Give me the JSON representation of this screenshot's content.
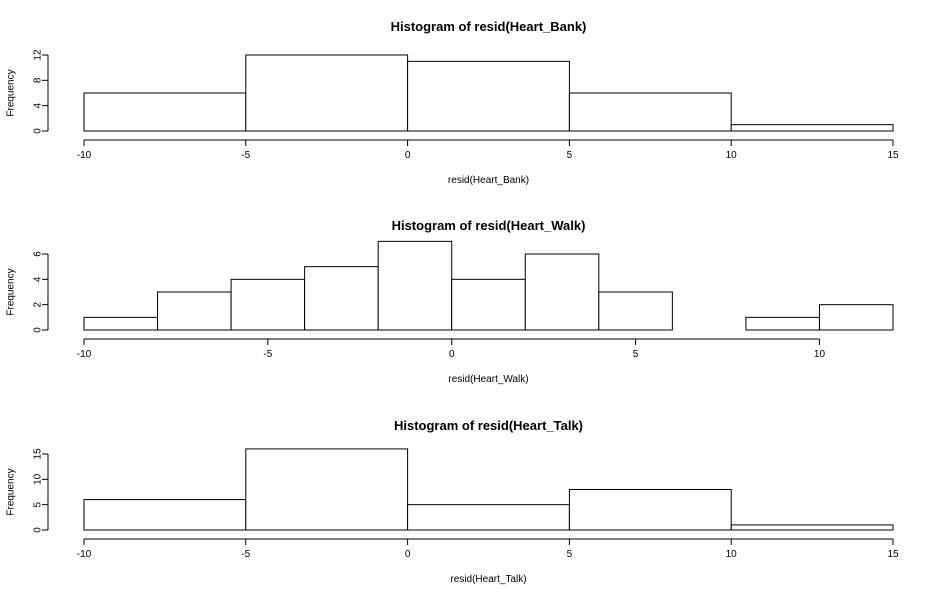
{
  "chart_data": [
    {
      "type": "bar",
      "title": "Histogram of resid(Heart_Bank)",
      "xlabel": "resid(Heart_Bank)",
      "ylabel": "Frequency",
      "bin_edges": [
        -10,
        -5,
        0,
        5,
        10,
        15
      ],
      "values": [
        6,
        12,
        11,
        6,
        1
      ],
      "xlim": [
        -10,
        15
      ],
      "ylim": [
        0,
        12
      ],
      "x_ticks": [
        "-10",
        "-5",
        "0",
        "5",
        "10",
        "15"
      ],
      "y_ticks": [
        "0",
        "4",
        "8",
        "12"
      ]
    },
    {
      "type": "bar",
      "title": "Histogram of resid(Heart_Walk)",
      "xlabel": "resid(Heart_Walk)",
      "ylabel": "Frequency",
      "bin_edges": [
        -10,
        -8,
        -6,
        -4,
        -2,
        0,
        2,
        4,
        6,
        8,
        10,
        12
      ],
      "values": [
        1,
        3,
        4,
        5,
        7,
        4,
        6,
        3,
        0,
        1,
        2
      ],
      "xlim": [
        -10,
        12
      ],
      "ylim": [
        0,
        6
      ],
      "x_ticks": [
        "-10",
        "-5",
        "0",
        "5",
        "10"
      ],
      "y_ticks": [
        "0",
        "2",
        "4",
        "6"
      ]
    },
    {
      "type": "bar",
      "title": "Histogram of resid(Heart_Talk)",
      "xlabel": "resid(Heart_Talk)",
      "ylabel": "Frequency",
      "bin_edges": [
        -10,
        -5,
        0,
        5,
        10,
        15
      ],
      "values": [
        6,
        16,
        5,
        8,
        1
      ],
      "xlim": [
        -10,
        15
      ],
      "ylim": [
        0,
        15
      ],
      "x_ticks": [
        "-10",
        "-5",
        "0",
        "5",
        "10",
        "15"
      ],
      "y_ticks": [
        "0",
        "5",
        "10",
        "15"
      ]
    }
  ]
}
